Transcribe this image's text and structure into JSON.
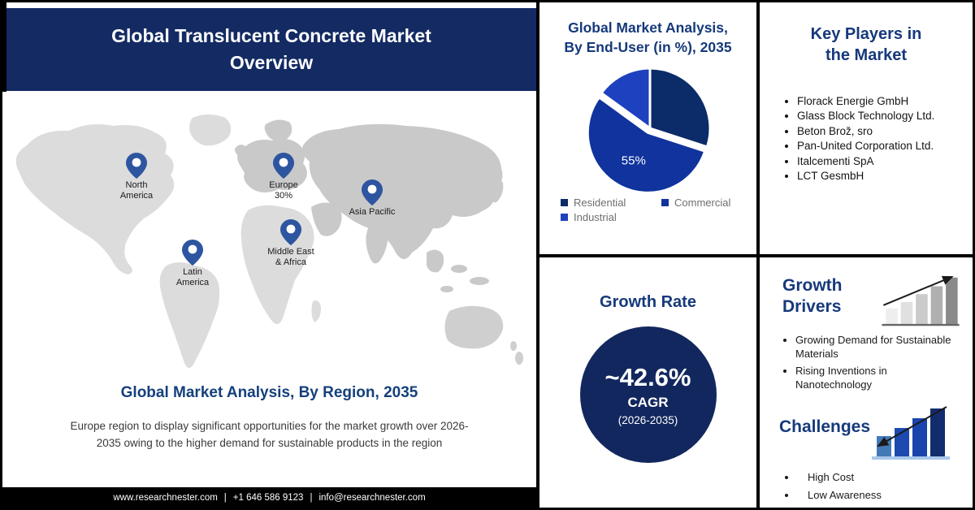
{
  "header": {
    "title": "Global Translucent Concrete Market Overview"
  },
  "map_section": {
    "heading": "Global Market Analysis, By Region, 2035",
    "description": "Europe region to display significant opportunities for the market growth over 2026-2035 owing to the higher demand for sustainable products in the region",
    "regions": [
      {
        "name": "North America",
        "label": "North\nAmerica"
      },
      {
        "name": "Europe",
        "label": "Europe\n30%"
      },
      {
        "name": "Asia Pacific",
        "label": "Asia Pacific"
      },
      {
        "name": "Middle East & Africa",
        "label": "Middle East\n& Africa"
      },
      {
        "name": "Latin America",
        "label": "Latin\nAmerica"
      }
    ]
  },
  "pie_panel": {
    "title": "Global Market Analysis, By End-User (in %), 2035"
  },
  "growth_panel": {
    "heading": "Growth Rate",
    "value": "~42.6%",
    "metric": "CAGR",
    "period": "(2026-2035)"
  },
  "key_players_panel": {
    "heading": "Key Players in the Market",
    "players": [
      "Florack Energie GmbH",
      "Glass Block Technology Ltd.",
      "Beton Brož, sro",
      "Pan-United Corporation Ltd.",
      "Italcementi SpA",
      "LCT GesmbH"
    ]
  },
  "drivers_panel": {
    "heading": "Growth Drivers",
    "items": [
      "Growing Demand for Sustainable Materials",
      "Rising Inventions in Nanotechnology"
    ]
  },
  "challenges_panel": {
    "heading": "Challenges",
    "items": [
      "High Cost",
      "Low Awareness"
    ]
  },
  "footer": {
    "website": "www.researchnester.com",
    "phone": "+1 646 586 9123",
    "email": "info@researchnester.com",
    "separator": "|"
  },
  "colors": {
    "banner_navy": "#132a63",
    "heading_navy": "#16397b",
    "circle_navy": "#12275e",
    "pin_blue": "#2d55a0",
    "map_light_gray": "#dcdcdc",
    "map_dark_gray": "#c9c9c9"
  },
  "chart_data": [
    {
      "type": "pie",
      "title": "Global Market Analysis, By End-User (in %), 2035",
      "labels": [
        "Residential",
        "Commercial",
        "Industrial"
      ],
      "values": [
        30,
        55,
        15
      ],
      "unit": "%",
      "colors": [
        "#0b2b69",
        "#10339d",
        "#1e41c0"
      ],
      "data_labels": [
        "",
        "55%",
        ""
      ],
      "exploded_slice": "Commercial",
      "legend_position": "bottom"
    },
    {
      "type": "map",
      "title": "Global Market Analysis, By Region, 2035",
      "regions": [
        "North America",
        "Latin America",
        "Europe",
        "Middle East & Africa",
        "Asia Pacific"
      ],
      "labeled_values": {
        "Europe": "30%"
      }
    }
  ]
}
